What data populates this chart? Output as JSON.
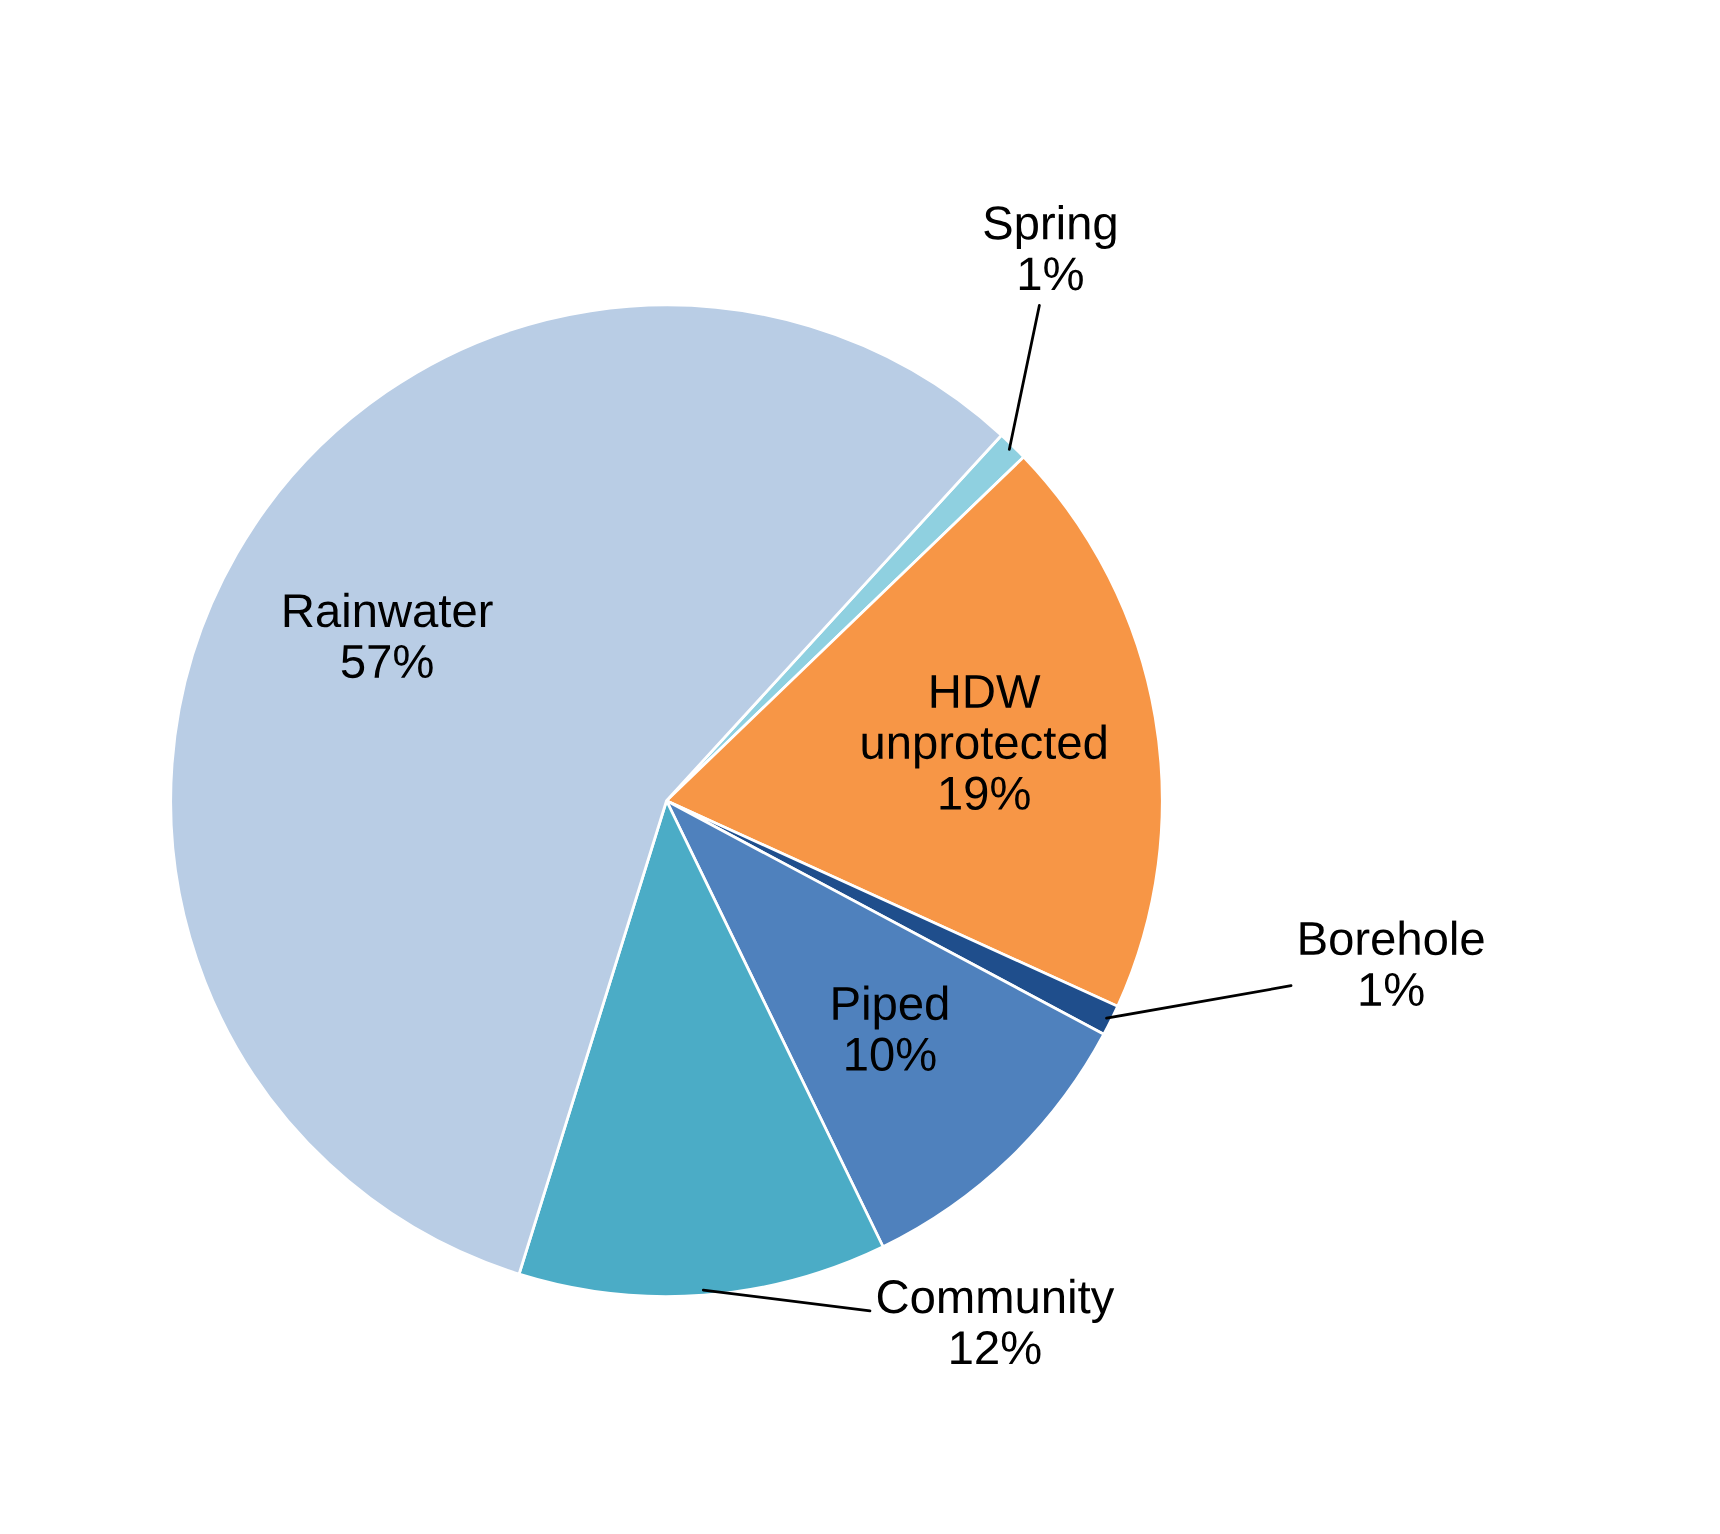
{
  "chart_data": {
    "type": "pie",
    "categories": [
      "Spring",
      "HDW unprotected",
      "Borehole",
      "Piped",
      "Community",
      "Rainwater"
    ],
    "values": [
      1,
      19,
      1,
      10,
      12,
      57
    ],
    "value_labels": [
      "1%",
      "19%",
      "1%",
      "10%",
      "12%",
      "57%"
    ],
    "colors": [
      "#8fd0e0",
      "#f79646",
      "#1f4e8c",
      "#4f81bd",
      "#4bacc6",
      "#b9cde5"
    ],
    "legend": false
  }
}
